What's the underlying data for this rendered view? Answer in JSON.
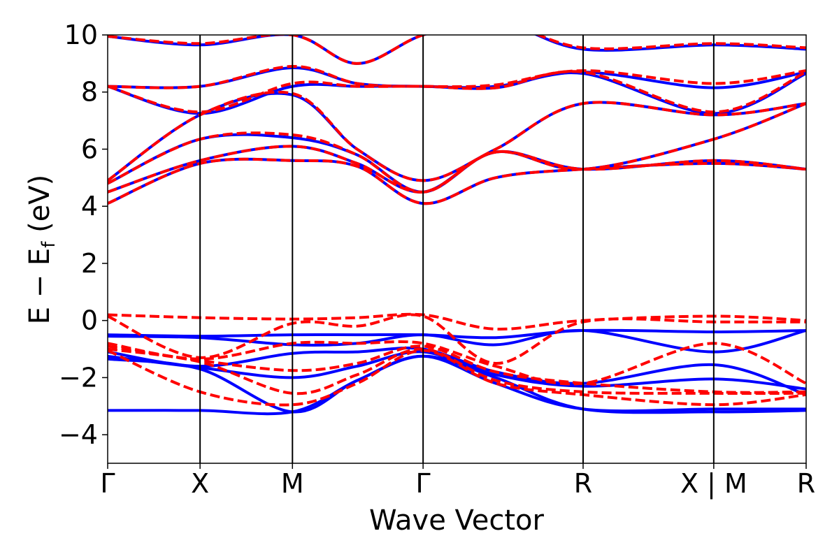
{
  "chart_data": {
    "type": "line",
    "title": "",
    "xlabel": "Wave Vector",
    "ylabel": "E − E",
    "ylabel_subscript": "f",
    "ylabel_unit": "(eV)",
    "ylim": [
      -5,
      10
    ],
    "yticks": [
      -4,
      -2,
      0,
      2,
      4,
      6,
      8,
      10
    ],
    "ytick_labels": [
      "−4",
      "−2",
      "0",
      "2",
      "4",
      "6",
      "8",
      "10"
    ],
    "kpoints": [
      {
        "label": "Γ",
        "x": 0
      },
      {
        "label": "X",
        "x": 0.5
      },
      {
        "label": "M",
        "x": 1.0
      },
      {
        "label": "Γ",
        "x": 1.707
      },
      {
        "label": "R",
        "x": 2.573
      },
      {
        "label": "X | M",
        "x": 3.28
      },
      {
        "label": "R",
        "x": 3.78
      }
    ],
    "xlim": [
      0,
      3.78
    ],
    "grid": false,
    "legend": "none",
    "series": [
      {
        "style": "solid",
        "color": "#0000ff",
        "bands": [
          {
            "x": [
              0,
              0.5,
              1.0,
              1.35,
              1.707,
              2.1,
              2.573,
              3.28,
              3.78
            ],
            "y": [
              -3.15,
              -3.15,
              -3.2,
              -2.1,
              -1.25,
              -2.0,
              -3.1,
              -3.2,
              -3.15
            ]
          },
          {
            "x": [
              0,
              0.5,
              1.0,
              1.35,
              1.707,
              2.1,
              2.573,
              3.28,
              3.78
            ],
            "y": [
              -1.35,
              -1.7,
              -3.2,
              -2.1,
              -1.25,
              -2.2,
              -3.1,
              -3.1,
              -3.1
            ]
          },
          {
            "x": [
              0,
              0.5,
              1.0,
              1.35,
              1.707,
              2.1,
              2.573,
              3.28,
              3.78
            ],
            "y": [
              -1.25,
              -1.65,
              -2.0,
              -1.6,
              -1.1,
              -1.9,
              -2.3,
              -2.05,
              -2.4
            ]
          },
          {
            "x": [
              0,
              0.5,
              1.0,
              1.35,
              1.707,
              2.1,
              2.573,
              3.28,
              3.78
            ],
            "y": [
              -1.1,
              -1.6,
              -1.15,
              -1.1,
              -1.0,
              -1.8,
              -2.2,
              -1.55,
              -2.6
            ]
          },
          {
            "x": [
              0,
              0.5,
              1.0,
              1.35,
              1.707,
              2.1,
              2.573,
              3.28,
              3.78
            ],
            "y": [
              -0.55,
              -0.6,
              -0.85,
              -0.8,
              -0.5,
              -0.85,
              -0.35,
              -1.1,
              -0.35
            ]
          },
          {
            "x": [
              0,
              0.5,
              1.0,
              1.35,
              1.707,
              2.1,
              2.573,
              3.28,
              3.78
            ],
            "y": [
              -0.5,
              -0.55,
              -0.5,
              -0.5,
              -0.5,
              -0.6,
              -0.35,
              -0.4,
              -0.35
            ]
          },
          {
            "x": [
              0,
              0.5,
              1.0,
              1.35,
              1.707,
              2.1,
              2.573,
              3.28,
              3.78
            ],
            "y": [
              4.1,
              5.5,
              5.6,
              5.4,
              4.1,
              5.0,
              5.3,
              5.5,
              5.3
            ]
          },
          {
            "x": [
              0,
              0.5,
              1.0,
              1.35,
              1.707,
              2.1,
              2.573,
              3.28,
              3.78
            ],
            "y": [
              4.5,
              5.6,
              6.1,
              5.5,
              4.5,
              5.9,
              5.3,
              5.6,
              5.3
            ]
          },
          {
            "x": [
              0,
              0.5,
              1.0,
              1.35,
              1.707,
              2.1,
              2.573,
              3.28,
              3.78
            ],
            "y": [
              4.8,
              6.35,
              6.4,
              5.8,
              4.5,
              5.9,
              5.3,
              6.35,
              7.6
            ]
          },
          {
            "x": [
              0,
              0.5,
              1.0,
              1.35,
              1.707,
              2.1,
              2.573,
              3.28,
              3.78
            ],
            "y": [
              4.9,
              7.2,
              7.9,
              6.0,
              4.9,
              6.0,
              7.6,
              7.2,
              7.6
            ]
          },
          {
            "x": [
              0,
              0.5,
              1.0,
              1.35,
              1.707,
              2.1,
              2.573,
              3.28,
              3.78
            ],
            "y": [
              8.2,
              7.25,
              8.2,
              8.2,
              8.2,
              8.15,
              8.65,
              7.25,
              8.65
            ]
          },
          {
            "x": [
              0,
              0.5,
              1.0,
              1.35,
              1.707,
              2.1,
              2.573,
              3.28,
              3.78
            ],
            "y": [
              8.2,
              8.2,
              8.85,
              8.3,
              8.2,
              8.2,
              8.7,
              8.15,
              8.7
            ]
          },
          {
            "x": [
              0,
              0.5,
              1.0,
              1.35,
              1.707,
              2.1,
              2.573,
              3.28,
              3.78
            ],
            "y": [
              9.95,
              9.65,
              10.0,
              9.0,
              10.0,
              10.5,
              9.5,
              9.65,
              9.5
            ]
          }
        ]
      },
      {
        "style": "dashed",
        "color": "#ff0000",
        "bands": [
          {
            "x": [
              0,
              0.5,
              1.0,
              1.35,
              1.707,
              2.1,
              2.573,
              3.28,
              3.78
            ],
            "y": [
              0.2,
              0.1,
              0.05,
              0.1,
              0.2,
              -0.3,
              0.0,
              0.15,
              0.0
            ]
          },
          {
            "x": [
              0,
              0.5,
              1.0,
              1.35,
              1.707,
              2.1,
              2.573,
              3.28,
              3.78
            ],
            "y": [
              0.15,
              -1.3,
              -0.1,
              -0.2,
              0.15,
              -1.5,
              -0.05,
              -0.05,
              -0.05
            ]
          },
          {
            "x": [
              0,
              0.5,
              1.0,
              1.35,
              1.707,
              2.1,
              2.573,
              3.28,
              3.78
            ],
            "y": [
              -0.8,
              -1.35,
              -0.8,
              -0.8,
              -0.8,
              -1.6,
              -2.2,
              -0.8,
              -2.2
            ]
          },
          {
            "x": [
              0,
              0.5,
              1.0,
              1.35,
              1.707,
              2.1,
              2.573,
              3.28,
              3.78
            ],
            "y": [
              -0.9,
              -1.4,
              -1.75,
              -1.5,
              -0.9,
              -1.8,
              -2.2,
              -2.5,
              -2.5
            ]
          },
          {
            "x": [
              0,
              0.5,
              1.0,
              1.35,
              1.707,
              2.1,
              2.573,
              3.28,
              3.78
            ],
            "y": [
              -1.0,
              -1.45,
              -2.55,
              -1.9,
              -1.0,
              -2.1,
              -2.5,
              -2.55,
              -2.55
            ]
          },
          {
            "x": [
              0,
              0.5,
              1.0,
              1.35,
              1.707,
              2.1,
              2.573,
              3.28,
              3.78
            ],
            "y": [
              -1.05,
              -2.5,
              -2.95,
              -2.2,
              -1.05,
              -2.2,
              -2.6,
              -2.95,
              -2.6
            ]
          },
          {
            "x": [
              0,
              0.5,
              1.0,
              1.35,
              1.707,
              2.1,
              2.573,
              3.28,
              3.78
            ],
            "y": [
              4.1,
              5.5,
              5.6,
              5.4,
              4.1,
              5.0,
              5.3,
              5.5,
              5.3
            ]
          },
          {
            "x": [
              0,
              0.5,
              1.0,
              1.35,
              1.707,
              2.1,
              2.573,
              3.28,
              3.78
            ],
            "y": [
              4.5,
              5.6,
              6.1,
              5.5,
              4.5,
              5.9,
              5.3,
              5.6,
              5.3
            ]
          },
          {
            "x": [
              0,
              0.5,
              1.0,
              1.35,
              1.707,
              2.1,
              2.573,
              3.28,
              3.78
            ],
            "y": [
              4.8,
              6.35,
              6.5,
              5.8,
              4.5,
              5.9,
              5.3,
              6.35,
              7.6
            ]
          },
          {
            "x": [
              0,
              0.5,
              1.0,
              1.35,
              1.707,
              2.1,
              2.573,
              3.28,
              3.78
            ],
            "y": [
              4.9,
              7.2,
              7.95,
              6.0,
              4.9,
              6.0,
              7.6,
              7.2,
              7.6
            ]
          },
          {
            "x": [
              0,
              0.5,
              1.0,
              1.35,
              1.707,
              2.1,
              2.573,
              3.28,
              3.78
            ],
            "y": [
              8.2,
              7.3,
              8.3,
              8.2,
              8.2,
              8.15,
              8.7,
              7.3,
              8.7
            ]
          },
          {
            "x": [
              0,
              0.5,
              1.0,
              1.35,
              1.707,
              2.1,
              2.573,
              3.28,
              3.78
            ],
            "y": [
              8.2,
              8.2,
              8.9,
              8.3,
              8.2,
              8.25,
              8.75,
              8.3,
              8.75
            ]
          },
          {
            "x": [
              0,
              0.5,
              1.0,
              1.35,
              1.707,
              2.1,
              2.573,
              3.28,
              3.78
            ],
            "y": [
              9.95,
              9.7,
              10.0,
              9.0,
              10.0,
              10.5,
              9.55,
              9.7,
              9.55
            ]
          }
        ]
      }
    ]
  }
}
